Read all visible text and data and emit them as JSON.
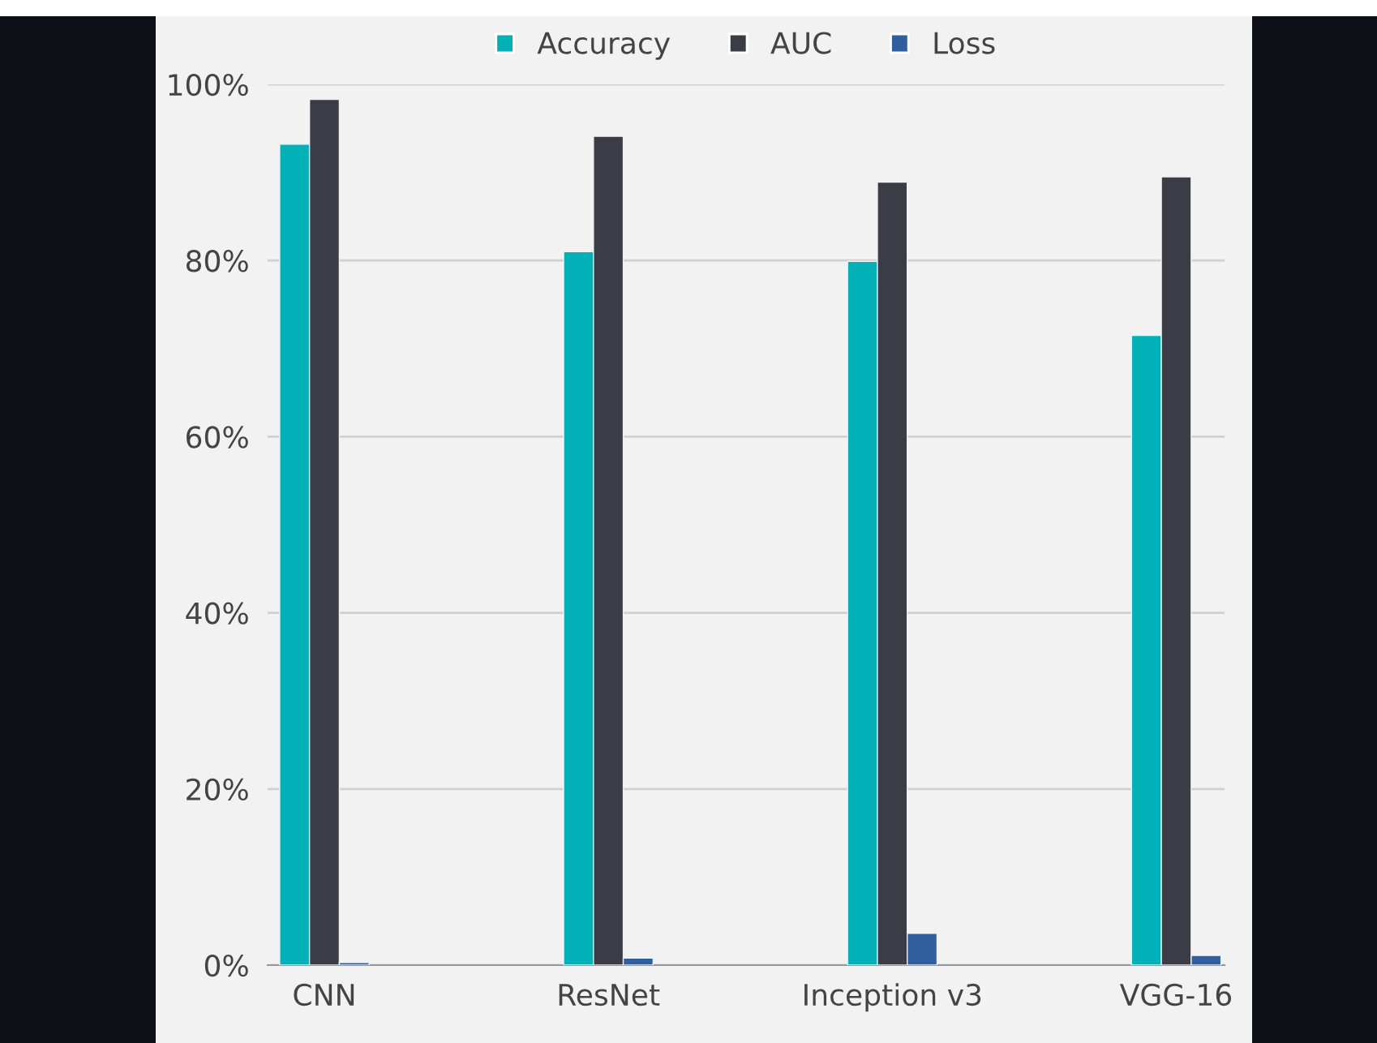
{
  "chart_data": {
    "type": "bar",
    "categories": [
      "CNN",
      "ResNet",
      "Inception v3",
      "VGG-16"
    ],
    "series": [
      {
        "name": "Accuracy",
        "color": "#00b2b8",
        "values": [
          93.2,
          81.0,
          79.9,
          71.5
        ]
      },
      {
        "name": "AUC",
        "color": "#3a3d45",
        "values": [
          98.3,
          94.1,
          88.9,
          89.5
        ]
      },
      {
        "name": "Loss",
        "color": "#2f5f9e",
        "values": [
          0.3,
          0.8,
          3.6,
          1.1
        ]
      }
    ],
    "ylim": [
      0,
      100
    ],
    "yticks": [
      {
        "value": 0,
        "label": "0%"
      },
      {
        "value": 20,
        "label": "20%"
      },
      {
        "value": 40,
        "label": "40%"
      },
      {
        "value": 60,
        "label": "60%"
      },
      {
        "value": 80,
        "label": "80%"
      },
      {
        "value": 100,
        "label": "100%"
      }
    ],
    "grid": "y",
    "legend": "top"
  }
}
